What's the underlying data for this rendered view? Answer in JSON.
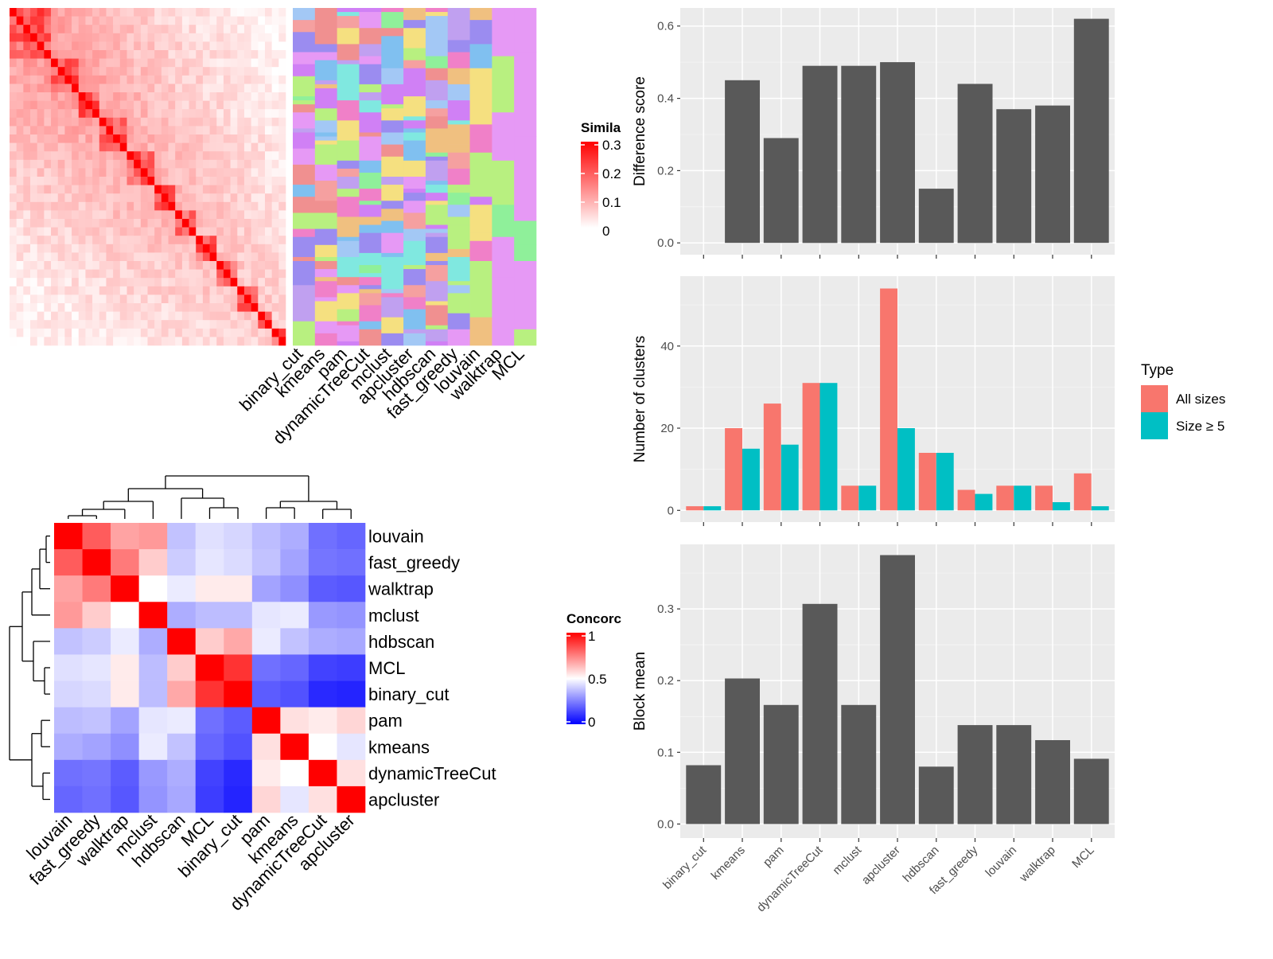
{
  "colors": {
    "bar_fill": "#595959",
    "panel_bg": "#ebebeb",
    "grid_major": "#ffffff",
    "type_all_sizes": "#F8766D",
    "type_size5": "#00BFC4",
    "similarity_low": "#ffffff",
    "similarity_high": "#ff0000",
    "concordance_low": "#0000ff",
    "concordance_mid": "#ffffff",
    "concordance_high": "#ff0000"
  },
  "chart_data": [
    {
      "type": "heatmap",
      "name": "similarity-matrix",
      "legend_title": "Simila",
      "legend_ticks": [
        "0.3",
        "0.2",
        "0.1",
        "0"
      ],
      "range": [
        0,
        0.3
      ]
    },
    {
      "type": "heatmap",
      "name": "cluster-assignments",
      "columns": [
        "binary_cut",
        "kmeans",
        "pam",
        "dynamicTreeCut",
        "mclust",
        "apcluster",
        "hdbscan",
        "fast_greedy",
        "louvain",
        "walktrap",
        "MCL"
      ]
    },
    {
      "type": "heatmap",
      "name": "concordance-matrix",
      "legend_title": "Concorc",
      "legend_ticks": [
        "1",
        "0.5",
        "0"
      ],
      "range": [
        0,
        1
      ],
      "rows": [
        "louvain",
        "fast_greedy",
        "walktrap",
        "mclust",
        "hdbscan",
        "MCL",
        "binary_cut",
        "pam",
        "kmeans",
        "dynamicTreeCut",
        "apcluster"
      ],
      "columns": [
        "louvain",
        "fast_greedy",
        "walktrap",
        "mclust",
        "hdbscan",
        "MCL",
        "binary_cut",
        "pam",
        "kmeans",
        "dynamicTreeCut",
        "apcluster"
      ],
      "values": [
        [
          1.0,
          0.82,
          0.68,
          0.7,
          0.38,
          0.44,
          0.42,
          0.37,
          0.34,
          0.22,
          0.2
        ],
        [
          0.82,
          1.0,
          0.76,
          0.6,
          0.4,
          0.45,
          0.43,
          0.38,
          0.32,
          0.23,
          0.22
        ],
        [
          0.68,
          0.76,
          1.0,
          0.5,
          0.46,
          0.54,
          0.54,
          0.32,
          0.28,
          0.18,
          0.17
        ],
        [
          0.7,
          0.6,
          0.5,
          1.0,
          0.34,
          0.37,
          0.37,
          0.45,
          0.46,
          0.3,
          0.29
        ],
        [
          0.38,
          0.4,
          0.46,
          0.34,
          1.0,
          0.6,
          0.67,
          0.46,
          0.38,
          0.34,
          0.33
        ],
        [
          0.44,
          0.45,
          0.54,
          0.37,
          0.6,
          1.0,
          0.9,
          0.22,
          0.2,
          0.13,
          0.12
        ],
        [
          0.42,
          0.43,
          0.54,
          0.37,
          0.67,
          0.9,
          1.0,
          0.18,
          0.16,
          0.08,
          0.07
        ],
        [
          0.37,
          0.38,
          0.32,
          0.45,
          0.46,
          0.22,
          0.18,
          1.0,
          0.56,
          0.54,
          0.58
        ],
        [
          0.34,
          0.32,
          0.28,
          0.46,
          0.38,
          0.2,
          0.16,
          0.56,
          1.0,
          0.5,
          0.45
        ],
        [
          0.22,
          0.23,
          0.18,
          0.3,
          0.34,
          0.13,
          0.08,
          0.54,
          0.5,
          1.0,
          0.56
        ],
        [
          0.2,
          0.22,
          0.17,
          0.29,
          0.33,
          0.12,
          0.07,
          0.58,
          0.45,
          0.56,
          1.0
        ]
      ]
    },
    {
      "type": "bar",
      "name": "difference-score",
      "ylabel": "Difference score",
      "categories": [
        "binary_cut",
        "kmeans",
        "pam",
        "dynamicTreeCut",
        "mclust",
        "apcluster",
        "hdbscan",
        "fast_greedy",
        "louvain",
        "walktrap",
        "MCL"
      ],
      "values": [
        0,
        0.45,
        0.29,
        0.49,
        0.49,
        0.5,
        0.15,
        0.44,
        0.37,
        0.38,
        0.62
      ],
      "ylim": [
        0,
        0.65
      ],
      "yticks": [
        0.0,
        0.2,
        0.4,
        0.6
      ],
      "ytick_labels": [
        "0.0",
        "0.2",
        "0.4",
        "0.6"
      ],
      "grid": true
    },
    {
      "type": "bar",
      "name": "number-of-clusters",
      "ylabel": "Number of clusters",
      "categories": [
        "binary_cut",
        "kmeans",
        "pam",
        "dynamicTreeCut",
        "mclust",
        "apcluster",
        "hdbscan",
        "fast_greedy",
        "louvain",
        "walktrap",
        "MCL"
      ],
      "series": [
        {
          "name": "All sizes",
          "values": [
            1,
            20,
            26,
            31,
            6,
            54,
            14,
            5,
            6,
            6,
            9
          ]
        },
        {
          "name": "Size ≥ 5",
          "values": [
            1,
            15,
            16,
            31,
            6,
            20,
            14,
            4,
            6,
            2,
            1
          ]
        }
      ],
      "legend_title": "Type",
      "legend_position": "right",
      "ylim": [
        0,
        57
      ],
      "yticks": [
        0,
        20,
        40
      ],
      "ytick_labels": [
        "0",
        "20",
        "40"
      ],
      "grid": true
    },
    {
      "type": "bar",
      "name": "block-mean",
      "ylabel": "Block mean",
      "categories": [
        "binary_cut",
        "kmeans",
        "pam",
        "dynamicTreeCut",
        "mclust",
        "apcluster",
        "hdbscan",
        "fast_greedy",
        "louvain",
        "walktrap",
        "MCL"
      ],
      "values": [
        0.082,
        0.203,
        0.166,
        0.307,
        0.166,
        0.375,
        0.08,
        0.138,
        0.138,
        0.117,
        0.091
      ],
      "ylim": [
        0,
        0.39
      ],
      "yticks": [
        0.0,
        0.1,
        0.2,
        0.3
      ],
      "ytick_labels": [
        "0.0",
        "0.1",
        "0.2",
        "0.3"
      ],
      "grid": true
    }
  ]
}
